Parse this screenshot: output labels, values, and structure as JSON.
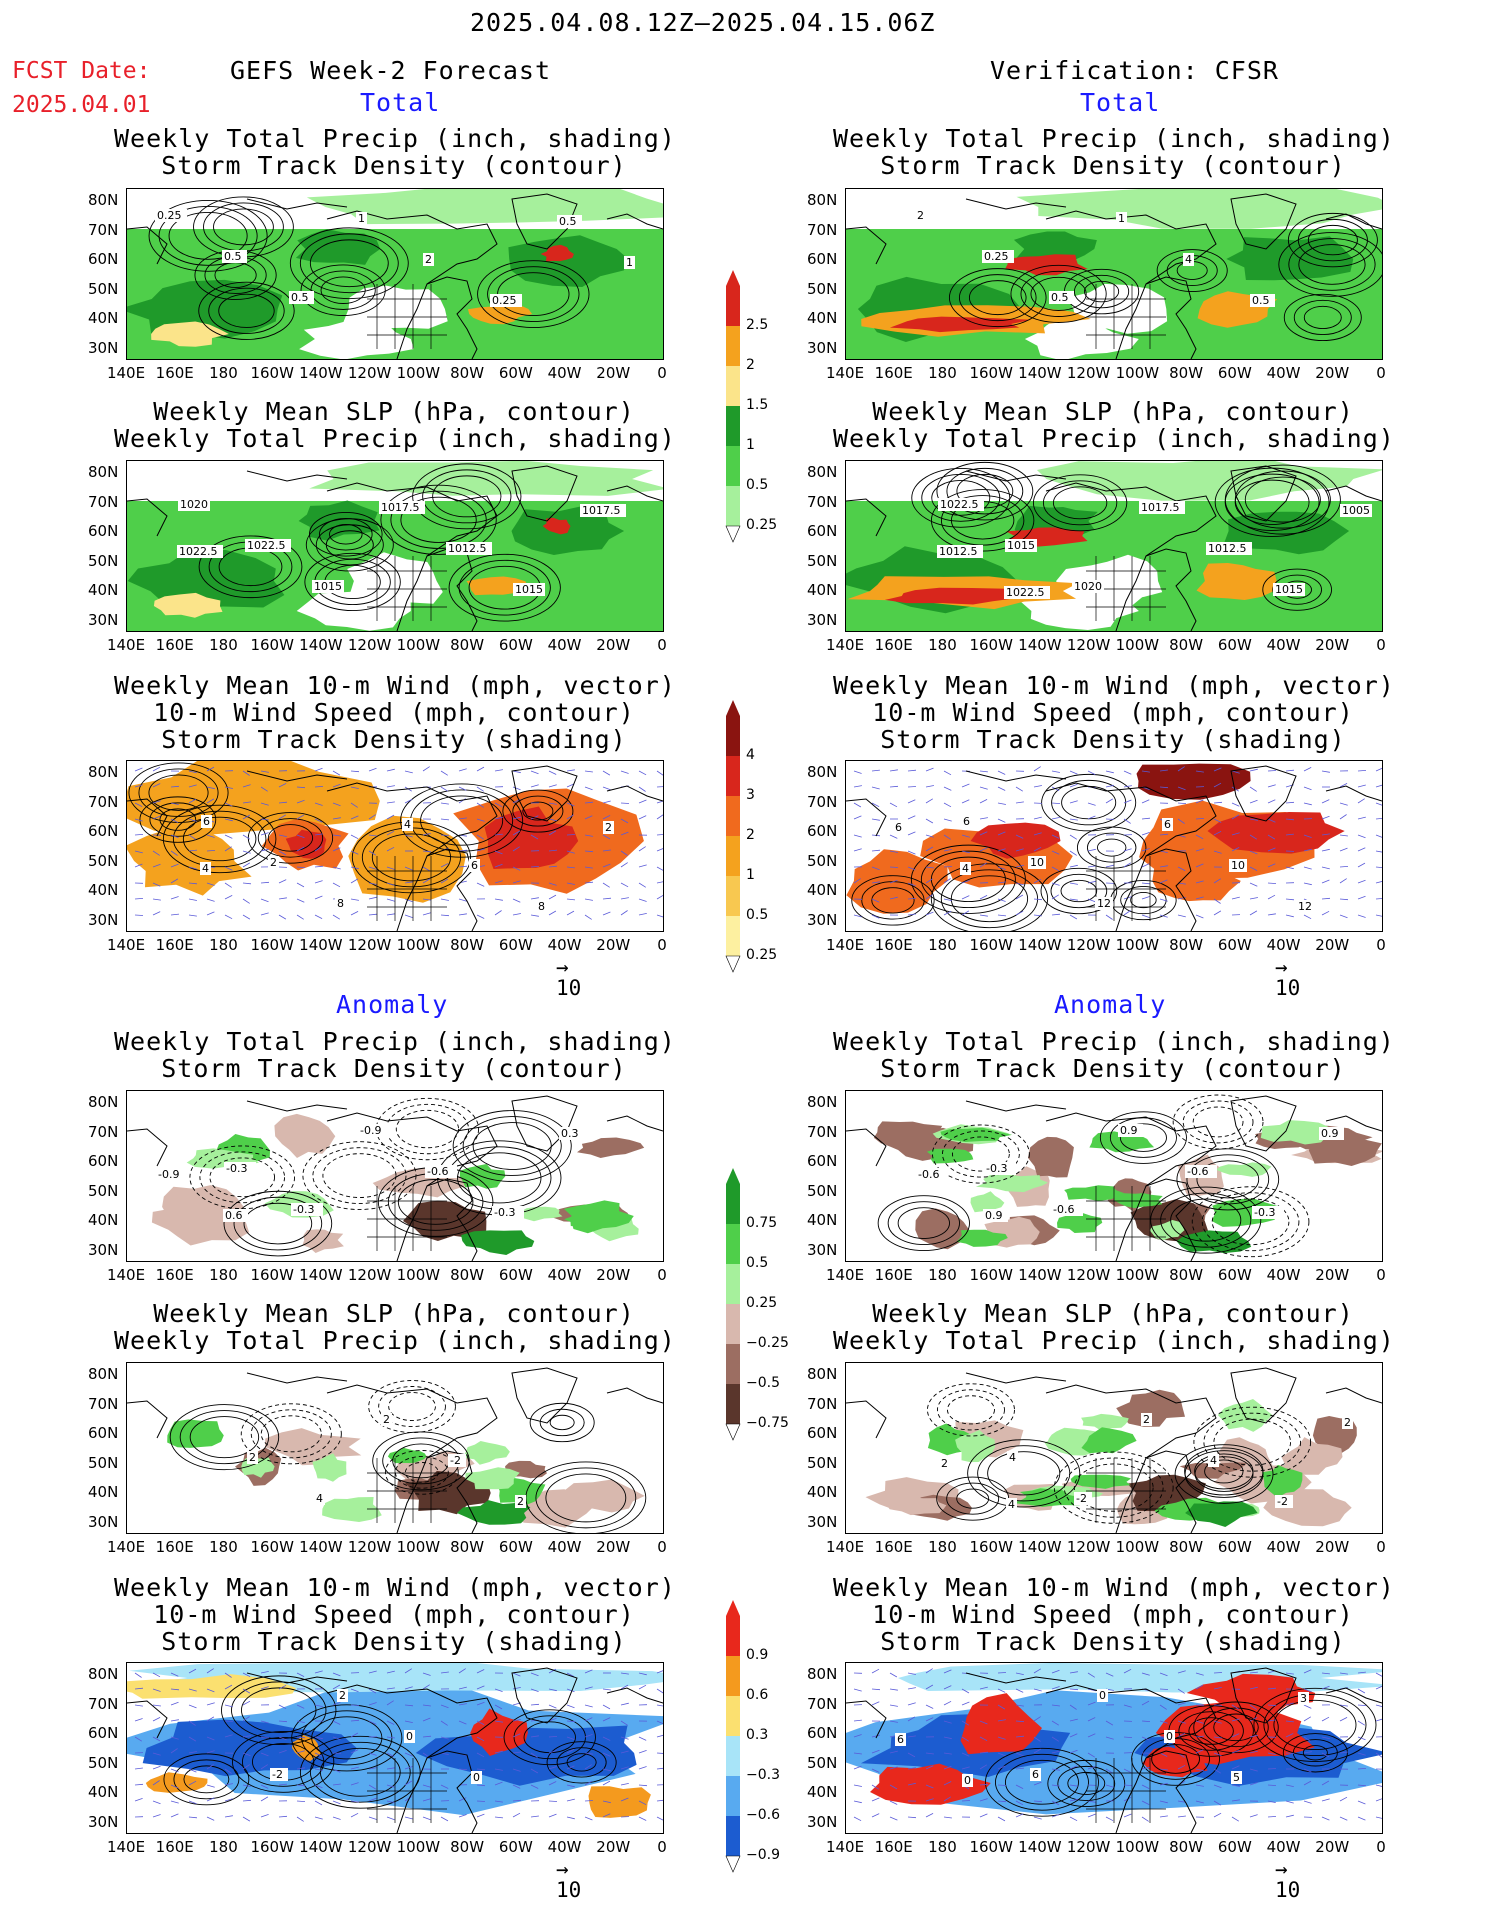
{
  "header": {
    "date_range": "2025.04.08.12Z–2025.04.15.06Z",
    "fcst_label": "FCST Date:",
    "fcst_date": "2025.04.01",
    "left_title": "GEFS Week-2 Forecast",
    "right_title": "Verification: CFSR"
  },
  "sections": {
    "total": "Total",
    "anomaly": "Anomaly"
  },
  "panel_titles": {
    "precip_storm": [
      "Weekly Total Precip (inch, shading)",
      "Storm Track Density (contour)"
    ],
    "slp_precip": [
      "Weekly Mean SLP (hPa, contour)",
      "Weekly Total Precip (inch, shading)"
    ],
    "wind": [
      "Weekly Mean 10-m Wind (mph, vector)",
      "10-m Wind Speed (mph, contour)",
      "Storm Track Density (shading)"
    ]
  },
  "axes": {
    "lat_labels": [
      "80N",
      "70N",
      "60N",
      "50N",
      "40N",
      "30N"
    ],
    "lon_labels": [
      "140E",
      "160E",
      "180",
      "160W",
      "140W",
      "120W",
      "100W",
      "80W",
      "60W",
      "40W",
      "20W",
      "0"
    ]
  },
  "vector_ref": "10",
  "colorbars": {
    "precip_total": {
      "labels": [
        "2.5",
        "2",
        "1.5",
        "1",
        "0.5",
        "0.25"
      ],
      "colors": [
        "#d8261c",
        "#f4a21e",
        "#fbe48a",
        "#1f9a2a",
        "#4fcf4a",
        "#a6f09c"
      ]
    },
    "storm_total": {
      "labels": [
        "4",
        "3",
        "2",
        "1",
        "0.5",
        "0.25"
      ],
      "colors": [
        "#8a1410",
        "#d8261c",
        "#f06a1e",
        "#f4a21e",
        "#f8c850",
        "#fdf0a0"
      ]
    },
    "precip_anom": {
      "labels": [
        "0.75",
        "0.5",
        "0.25",
        "−0.25",
        "−0.5",
        "−0.75"
      ],
      "colors": [
        "#1f9a2a",
        "#4fcf4a",
        "#a6f09c",
        "#d8b8ae",
        "#9c6e62",
        "#5a362c"
      ]
    },
    "storm_anom": {
      "labels": [
        "0.9",
        "0.6",
        "0.3",
        "−0.3",
        "−0.6",
        "−0.9"
      ],
      "colors": [
        "#e8281c",
        "#f49a1e",
        "#fbe070",
        "#a8e4f8",
        "#58aaf0",
        "#1c5cd0"
      ]
    }
  },
  "contour_labels": {
    "fc_precip": [
      "0.25",
      "0.5",
      "0.5",
      "1",
      "2",
      "0.25",
      "0.5",
      "1"
    ],
    "fc_slp": [
      "1020",
      "1022.5",
      "1015",
      "1017.5",
      "1012.5",
      "1015",
      "1017.5",
      "1022.5"
    ],
    "fc_wind": [
      "6",
      "2",
      "8",
      "4",
      "6",
      "8",
      "2",
      "4"
    ],
    "vf_precip": [
      "2",
      "0.25",
      "0.5",
      "1",
      "4",
      "0.5"
    ],
    "vf_slp": [
      "1022.5",
      "1015",
      "1020",
      "1017.5",
      "1012.5",
      "1015",
      "1005",
      "1012.5",
      "1022.5"
    ],
    "vf_wind": [
      "6",
      "10",
      "12",
      "6",
      "10",
      "12",
      "6",
      "4"
    ],
    "fa_precip": [
      "-0.3",
      "-0.3",
      "-0.9",
      "-0.6",
      "-0.3",
      "0.3",
      "-0.9",
      "0.6"
    ],
    "fa_slp": [
      "2",
      "4",
      "2",
      "-2",
      "2"
    ],
    "fa_wind": [
      "-2",
      "2",
      "0",
      "0"
    ],
    "va_precip": [
      "-0.3",
      "-0.6",
      "0.9",
      "-0.6",
      "-0.3",
      "0.9",
      "-0.6",
      "0.9"
    ],
    "va_slp": [
      "4",
      "-2",
      "2",
      "4",
      "-2",
      "2",
      "2",
      "4"
    ],
    "va_wind": [
      "6",
      "0",
      "0",
      "5",
      "3",
      "6",
      "0"
    ]
  }
}
